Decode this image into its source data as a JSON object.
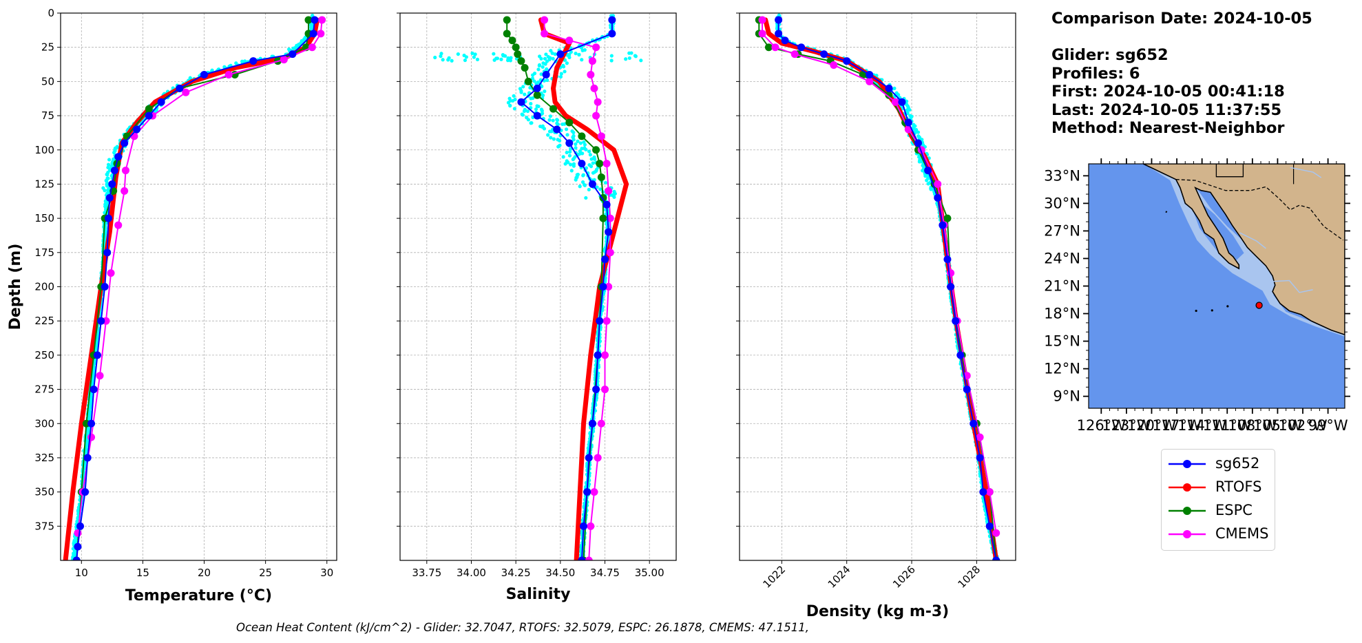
{
  "info": {
    "comparison_date": "Comparison Date: 2024-10-05",
    "glider": "Glider: sg652",
    "profiles": "Profiles: 6",
    "first": "First: 2024-10-05 00:41:18",
    "last": "Last: 2024-10-05 11:37:55",
    "method": "Method: Nearest-Neighbor"
  },
  "footer": "Ocean Heat Content (kJ/cm^2) - Glider: 32.7047,  RTOFS: 32.5079,  ESPC: 26.1878,  CMEMS: 47.1511,",
  "colors": {
    "sg652": "#0000ff",
    "RTOFS": "#ff0000",
    "ESPC": "#008000",
    "CMEMS": "#ff00ff",
    "raw_obs": "#00ffff",
    "ocean": "#6495ed",
    "shelf": "#a9c5ef",
    "land": "#d2b48c"
  },
  "legend": [
    {
      "name": "sg652",
      "color": "#0000ff"
    },
    {
      "name": "RTOFS",
      "color": "#ff0000"
    },
    {
      "name": "ESPC",
      "color": "#008000"
    },
    {
      "name": "CMEMS",
      "color": "#ff00ff"
    }
  ],
  "chart_data": [
    {
      "type": "line",
      "xlabel": "Temperature (°C)",
      "ylabel": "Depth (m)",
      "xlim": [
        8.3,
        30.8
      ],
      "ylim": [
        400,
        0
      ],
      "xticks": [
        10,
        15,
        20,
        25,
        30
      ],
      "yticks": [
        0,
        25,
        50,
        75,
        100,
        125,
        150,
        175,
        200,
        225,
        250,
        275,
        300,
        325,
        350,
        375
      ],
      "grid": true,
      "series": [
        {
          "name": "sg652",
          "points": [
            [
              29.0,
              5
            ],
            [
              28.9,
              15
            ],
            [
              27.2,
              30
            ],
            [
              24.0,
              35
            ],
            [
              20.0,
              45
            ],
            [
              18.0,
              55
            ],
            [
              16.5,
              65
            ],
            [
              15.5,
              75
            ],
            [
              14.5,
              85
            ],
            [
              13.5,
              95
            ],
            [
              13.0,
              105
            ],
            [
              12.7,
              115
            ],
            [
              12.5,
              125
            ],
            [
              12.3,
              135
            ],
            [
              12.2,
              150
            ],
            [
              12.1,
              175
            ],
            [
              11.9,
              200
            ],
            [
              11.6,
              225
            ],
            [
              11.3,
              250
            ],
            [
              11.0,
              275
            ],
            [
              10.8,
              300
            ],
            [
              10.5,
              325
            ],
            [
              10.3,
              350
            ],
            [
              9.9,
              375
            ],
            [
              9.7,
              390
            ],
            [
              9.6,
              400
            ]
          ]
        },
        {
          "name": "RTOFS",
          "points": [
            [
              29.2,
              5
            ],
            [
              29.0,
              15
            ],
            [
              28.3,
              25
            ],
            [
              26.5,
              33
            ],
            [
              22.5,
              40
            ],
            [
              19.0,
              50
            ],
            [
              16.0,
              65
            ],
            [
              14.5,
              80
            ],
            [
              13.3,
              95
            ],
            [
              12.8,
              120
            ],
            [
              12.3,
              160
            ],
            [
              11.6,
              200
            ],
            [
              10.8,
              250
            ],
            [
              10.0,
              300
            ],
            [
              9.3,
              350
            ],
            [
              8.7,
              400
            ]
          ]
        },
        {
          "name": "ESPC",
          "points": [
            [
              28.5,
              5
            ],
            [
              28.5,
              15
            ],
            [
              28.3,
              25
            ],
            [
              26.0,
              35
            ],
            [
              22.5,
              45
            ],
            [
              18.0,
              55
            ],
            [
              15.5,
              70
            ],
            [
              13.7,
              90
            ],
            [
              12.9,
              110
            ],
            [
              12.6,
              130
            ],
            [
              11.9,
              150
            ],
            [
              11.6,
              200
            ],
            [
              11.0,
              250
            ],
            [
              10.4,
              300
            ],
            [
              10.0,
              350
            ],
            [
              9.6,
              400
            ]
          ]
        },
        {
          "name": "CMEMS",
          "points": [
            [
              29.6,
              5
            ],
            [
              29.5,
              15
            ],
            [
              28.8,
              25
            ],
            [
              26.5,
              34
            ],
            [
              22.0,
              45
            ],
            [
              18.5,
              58
            ],
            [
              15.8,
              75
            ],
            [
              14.3,
              90
            ],
            [
              13.6,
              115
            ],
            [
              13.5,
              130
            ],
            [
              13.0,
              155
            ],
            [
              12.4,
              190
            ],
            [
              12.0,
              225
            ],
            [
              11.5,
              265
            ],
            [
              10.8,
              310
            ],
            [
              10.1,
              350
            ],
            [
              9.7,
              380
            ]
          ]
        }
      ]
    },
    {
      "type": "line",
      "xlabel": "Salinity",
      "xlim": [
        33.6,
        35.15
      ],
      "ylim": [
        400,
        0
      ],
      "xticks": [
        33.75,
        34.0,
        34.25,
        34.5,
        34.75,
        35.0
      ],
      "grid": true,
      "series": [
        {
          "name": "sg652",
          "points": [
            [
              34.79,
              5
            ],
            [
              34.79,
              15
            ],
            [
              34.5,
              30
            ],
            [
              34.42,
              45
            ],
            [
              34.37,
              55
            ],
            [
              34.28,
              65
            ],
            [
              34.37,
              75
            ],
            [
              34.48,
              85
            ],
            [
              34.55,
              95
            ],
            [
              34.62,
              110
            ],
            [
              34.68,
              125
            ],
            [
              34.76,
              140
            ],
            [
              34.77,
              160
            ],
            [
              34.75,
              180
            ],
            [
              34.74,
              200
            ],
            [
              34.72,
              225
            ],
            [
              34.71,
              250
            ],
            [
              34.7,
              275
            ],
            [
              34.68,
              300
            ],
            [
              34.66,
              325
            ],
            [
              34.65,
              350
            ],
            [
              34.63,
              375
            ],
            [
              34.62,
              400
            ]
          ]
        },
        {
          "name": "RTOFS",
          "points": [
            [
              34.39,
              5
            ],
            [
              34.41,
              15
            ],
            [
              34.55,
              22
            ],
            [
              34.52,
              30
            ],
            [
              34.48,
              40
            ],
            [
              34.46,
              55
            ],
            [
              34.47,
              65
            ],
            [
              34.53,
              75
            ],
            [
              34.65,
              85
            ],
            [
              34.8,
              100
            ],
            [
              34.87,
              125
            ],
            [
              34.8,
              160
            ],
            [
              34.72,
              200
            ],
            [
              34.67,
              250
            ],
            [
              34.63,
              300
            ],
            [
              34.61,
              350
            ],
            [
              34.59,
              400
            ]
          ]
        },
        {
          "name": "ESPC",
          "points": [
            [
              34.2,
              5
            ],
            [
              34.2,
              15
            ],
            [
              34.23,
              20
            ],
            [
              34.25,
              25
            ],
            [
              34.26,
              30
            ],
            [
              34.28,
              35
            ],
            [
              34.3,
              40
            ],
            [
              34.32,
              50
            ],
            [
              34.37,
              60
            ],
            [
              34.46,
              70
            ],
            [
              34.55,
              80
            ],
            [
              34.62,
              90
            ],
            [
              34.7,
              100
            ],
            [
              34.72,
              110
            ],
            [
              34.73,
              120
            ],
            [
              34.74,
              135
            ],
            [
              34.74,
              150
            ],
            [
              34.73,
              200
            ],
            [
              34.71,
              250
            ],
            [
              34.68,
              300
            ],
            [
              34.65,
              350
            ],
            [
              34.63,
              400
            ]
          ]
        },
        {
          "name": "CMEMS",
          "points": [
            [
              34.41,
              5
            ],
            [
              34.41,
              15
            ],
            [
              34.55,
              20
            ],
            [
              34.7,
              25
            ],
            [
              34.68,
              35
            ],
            [
              34.67,
              45
            ],
            [
              34.69,
              55
            ],
            [
              34.71,
              65
            ],
            [
              34.7,
              75
            ],
            [
              34.73,
              90
            ],
            [
              34.76,
              110
            ],
            [
              34.77,
              130
            ],
            [
              34.78,
              150
            ],
            [
              34.78,
              175
            ],
            [
              34.77,
              200
            ],
            [
              34.76,
              225
            ],
            [
              34.75,
              250
            ],
            [
              34.75,
              275
            ],
            [
              34.73,
              300
            ],
            [
              34.71,
              325
            ],
            [
              34.69,
              350
            ],
            [
              34.67,
              375
            ],
            [
              34.66,
              400
            ]
          ]
        }
      ]
    },
    {
      "type": "line",
      "xlabel": "Density (kg m-3)",
      "xlim": [
        1020.7,
        1029.2
      ],
      "ylim": [
        400,
        0
      ],
      "xticks": [
        1022,
        1024,
        1026,
        1028
      ],
      "grid": true,
      "series": [
        {
          "name": "sg652",
          "points": [
            [
              1021.9,
              5
            ],
            [
              1021.9,
              15
            ],
            [
              1022.1,
              20
            ],
            [
              1022.6,
              25
            ],
            [
              1023.3,
              30
            ],
            [
              1024.0,
              35
            ],
            [
              1024.7,
              45
            ],
            [
              1025.3,
              55
            ],
            [
              1025.7,
              65
            ],
            [
              1025.9,
              80
            ],
            [
              1026.2,
              95
            ],
            [
              1026.5,
              115
            ],
            [
              1026.8,
              135
            ],
            [
              1026.95,
              155
            ],
            [
              1027.1,
              180
            ],
            [
              1027.2,
              200
            ],
            [
              1027.35,
              225
            ],
            [
              1027.5,
              250
            ],
            [
              1027.7,
              275
            ],
            [
              1027.9,
              300
            ],
            [
              1028.1,
              325
            ],
            [
              1028.2,
              350
            ],
            [
              1028.4,
              375
            ],
            [
              1028.6,
              400
            ]
          ]
        },
        {
          "name": "RTOFS",
          "points": [
            [
              1021.5,
              5
            ],
            [
              1021.6,
              15
            ],
            [
              1022.0,
              22
            ],
            [
              1023.0,
              28
            ],
            [
              1024.0,
              35
            ],
            [
              1025.0,
              50
            ],
            [
              1025.6,
              70
            ],
            [
              1026.0,
              90
            ],
            [
              1026.4,
              105
            ],
            [
              1026.8,
              125
            ],
            [
              1027.1,
              180
            ],
            [
              1027.4,
              230
            ],
            [
              1027.9,
              300
            ],
            [
              1028.3,
              350
            ],
            [
              1028.6,
              400
            ]
          ]
        },
        {
          "name": "ESPC",
          "points": [
            [
              1021.3,
              5
            ],
            [
              1021.3,
              15
            ],
            [
              1021.6,
              25
            ],
            [
              1022.5,
              30
            ],
            [
              1023.5,
              35
            ],
            [
              1024.5,
              45
            ],
            [
              1025.3,
              60
            ],
            [
              1025.8,
              80
            ],
            [
              1026.2,
              100
            ],
            [
              1026.7,
              125
            ],
            [
              1027.1,
              150
            ],
            [
              1027.2,
              200
            ],
            [
              1027.55,
              250
            ],
            [
              1028.0,
              300
            ],
            [
              1028.4,
              350
            ],
            [
              1028.6,
              400
            ]
          ]
        },
        {
          "name": "CMEMS",
          "points": [
            [
              1021.4,
              5
            ],
            [
              1021.4,
              15
            ],
            [
              1021.8,
              25
            ],
            [
              1022.4,
              30
            ],
            [
              1023.6,
              38
            ],
            [
              1024.7,
              50
            ],
            [
              1025.5,
              65
            ],
            [
              1025.9,
              85
            ],
            [
              1026.3,
              100
            ],
            [
              1026.8,
              125
            ],
            [
              1027.0,
              155
            ],
            [
              1027.2,
              190
            ],
            [
              1027.4,
              225
            ],
            [
              1027.7,
              265
            ],
            [
              1028.1,
              310
            ],
            [
              1028.4,
              350
            ],
            [
              1028.6,
              380
            ]
          ]
        }
      ]
    },
    {
      "type": "map",
      "xticks": [
        "126°W",
        "123°W",
        "120°W",
        "117°W",
        "114°W",
        "111°W",
        "108°W",
        "105°W",
        "102°W",
        "99°W"
      ],
      "yticks": [
        "33°N",
        "30°N",
        "27°N",
        "24°N",
        "21°N",
        "18°N",
        "15°N",
        "12°N",
        "9°N"
      ],
      "lon_range": [
        -127.5,
        -97.0
      ],
      "lat_range": [
        7.7,
        34.3
      ],
      "glider_position": {
        "lon": -107.2,
        "lat": 18.9
      }
    }
  ]
}
